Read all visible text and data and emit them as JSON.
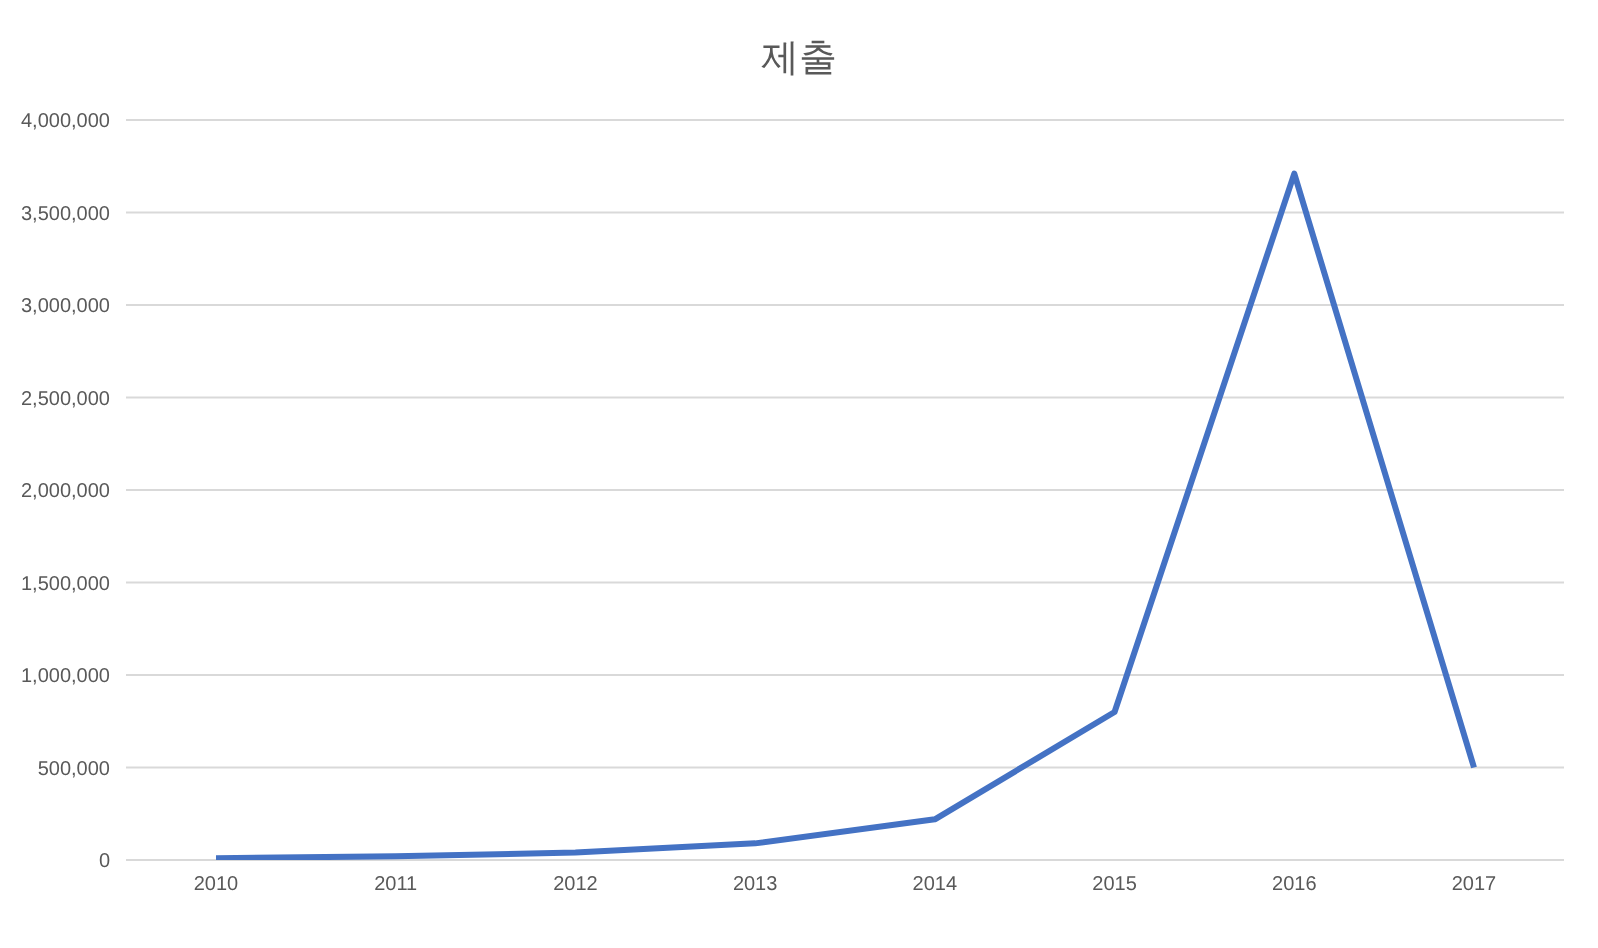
{
  "chart_data": {
    "type": "line",
    "title": "제출",
    "categories": [
      "2010",
      "2011",
      "2012",
      "2013",
      "2014",
      "2015",
      "2016",
      "2017"
    ],
    "series": [
      {
        "color": "#4472c4",
        "values": [
          10000,
          20000,
          40000,
          90000,
          220000,
          800000,
          3710000,
          500000
        ]
      }
    ],
    "ylim": [
      0,
      4000000
    ],
    "yticks": [
      0,
      {
        "value": 500000,
        "label": "500,000"
      },
      {
        "value": 1000000,
        "label": "1,000,000"
      },
      {
        "value": 1500000,
        "label": "1,500,000"
      },
      {
        "value": 2000000,
        "label": "2,000,000"
      },
      {
        "value": 2500000,
        "label": "2,500,000"
      },
      {
        "value": 3000000,
        "label": "3,000,000"
      },
      {
        "value": 3500000,
        "label": "3,500,000"
      },
      {
        "value": 4000000,
        "label": "4,000,000"
      }
    ],
    "grid": "y",
    "legend": false,
    "marker": "none",
    "line_style": "solid"
  }
}
